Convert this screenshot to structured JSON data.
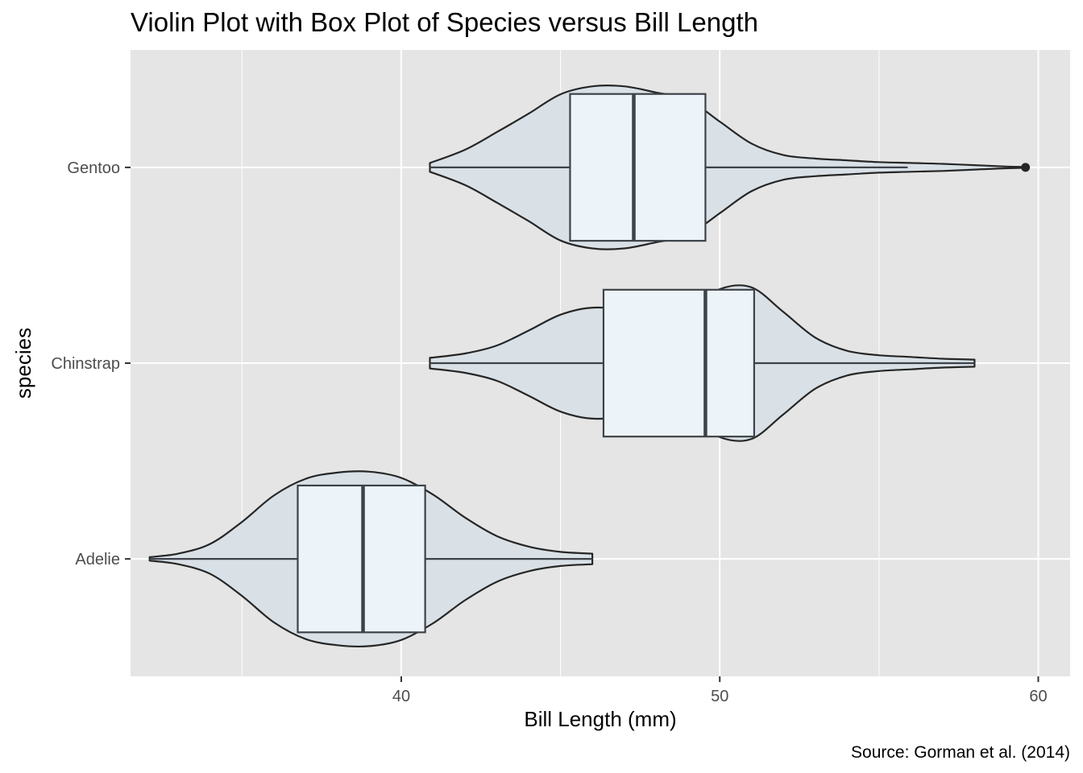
{
  "chart_data": {
    "type": "violin",
    "title": "Violin Plot with Box Plot of Species versus Bill Length",
    "xlabel": "Bill Length (mm)",
    "ylabel": "species",
    "caption": "Source: Gorman et al. (2014)",
    "xlim": [
      31.5,
      61.0
    ],
    "x_ticks": [
      40,
      50,
      60
    ],
    "x_minor_ticks": [
      35,
      45,
      55
    ],
    "orientation": "horizontal",
    "grid": true,
    "colors": {
      "panel": "#e5e5e5",
      "grid": "#ffffff",
      "violin_fill": "#d9e1e7",
      "box_fill": "#ecf3f9",
      "outline": "#262626",
      "box_line": "#3d4349"
    },
    "categories": [
      "Adelie",
      "Chinstrap",
      "Gentoo"
    ],
    "series": [
      {
        "name": "Adelie",
        "min": 32.1,
        "q1": 36.75,
        "median": 38.8,
        "q3": 40.75,
        "max": 46.0,
        "outliers": [],
        "density": [
          [
            32.1,
            0.02
          ],
          [
            33,
            0.06
          ],
          [
            34,
            0.17
          ],
          [
            35,
            0.42
          ],
          [
            36,
            0.72
          ],
          [
            37,
            0.91
          ],
          [
            38,
            0.98
          ],
          [
            39,
            0.99
          ],
          [
            40,
            0.92
          ],
          [
            41,
            0.73
          ],
          [
            42,
            0.47
          ],
          [
            43,
            0.26
          ],
          [
            44,
            0.14
          ],
          [
            45,
            0.08
          ],
          [
            46,
            0.06
          ]
        ]
      },
      {
        "name": "Chinstrap",
        "min": 40.9,
        "q1": 46.35,
        "median": 49.55,
        "q3": 51.08,
        "max": 58.0,
        "outliers": [],
        "density": [
          [
            40.9,
            0.06
          ],
          [
            42,
            0.11
          ],
          [
            43,
            0.2
          ],
          [
            44,
            0.37
          ],
          [
            45,
            0.55
          ],
          [
            46,
            0.63
          ],
          [
            47,
            0.59
          ],
          [
            48,
            0.44
          ],
          [
            49,
            0.59
          ],
          [
            50,
            0.84
          ],
          [
            51,
            0.86
          ],
          [
            52,
            0.58
          ],
          [
            53,
            0.29
          ],
          [
            54,
            0.14
          ],
          [
            55,
            0.09
          ],
          [
            56,
            0.07
          ],
          [
            57,
            0.05
          ],
          [
            58,
            0.04
          ]
        ]
      },
      {
        "name": "Gentoo",
        "min": 40.9,
        "q1": 45.3,
        "median": 47.3,
        "q3": 49.55,
        "max": 55.9,
        "outliers": [
          59.6
        ],
        "density": [
          [
            40.9,
            0.05
          ],
          [
            42,
            0.2
          ],
          [
            43,
            0.4
          ],
          [
            44,
            0.61
          ],
          [
            45,
            0.83
          ],
          [
            46,
            0.92
          ],
          [
            47,
            0.92
          ],
          [
            48,
            0.85
          ],
          [
            49,
            0.77
          ],
          [
            50,
            0.52
          ],
          [
            51,
            0.27
          ],
          [
            52,
            0.14
          ],
          [
            53,
            0.1
          ],
          [
            54,
            0.08
          ],
          [
            55,
            0.06
          ],
          [
            56,
            0.05
          ],
          [
            57,
            0.04
          ],
          [
            58,
            0.025
          ],
          [
            59,
            0.01
          ],
          [
            59.6,
            0.005
          ]
        ]
      }
    ]
  }
}
